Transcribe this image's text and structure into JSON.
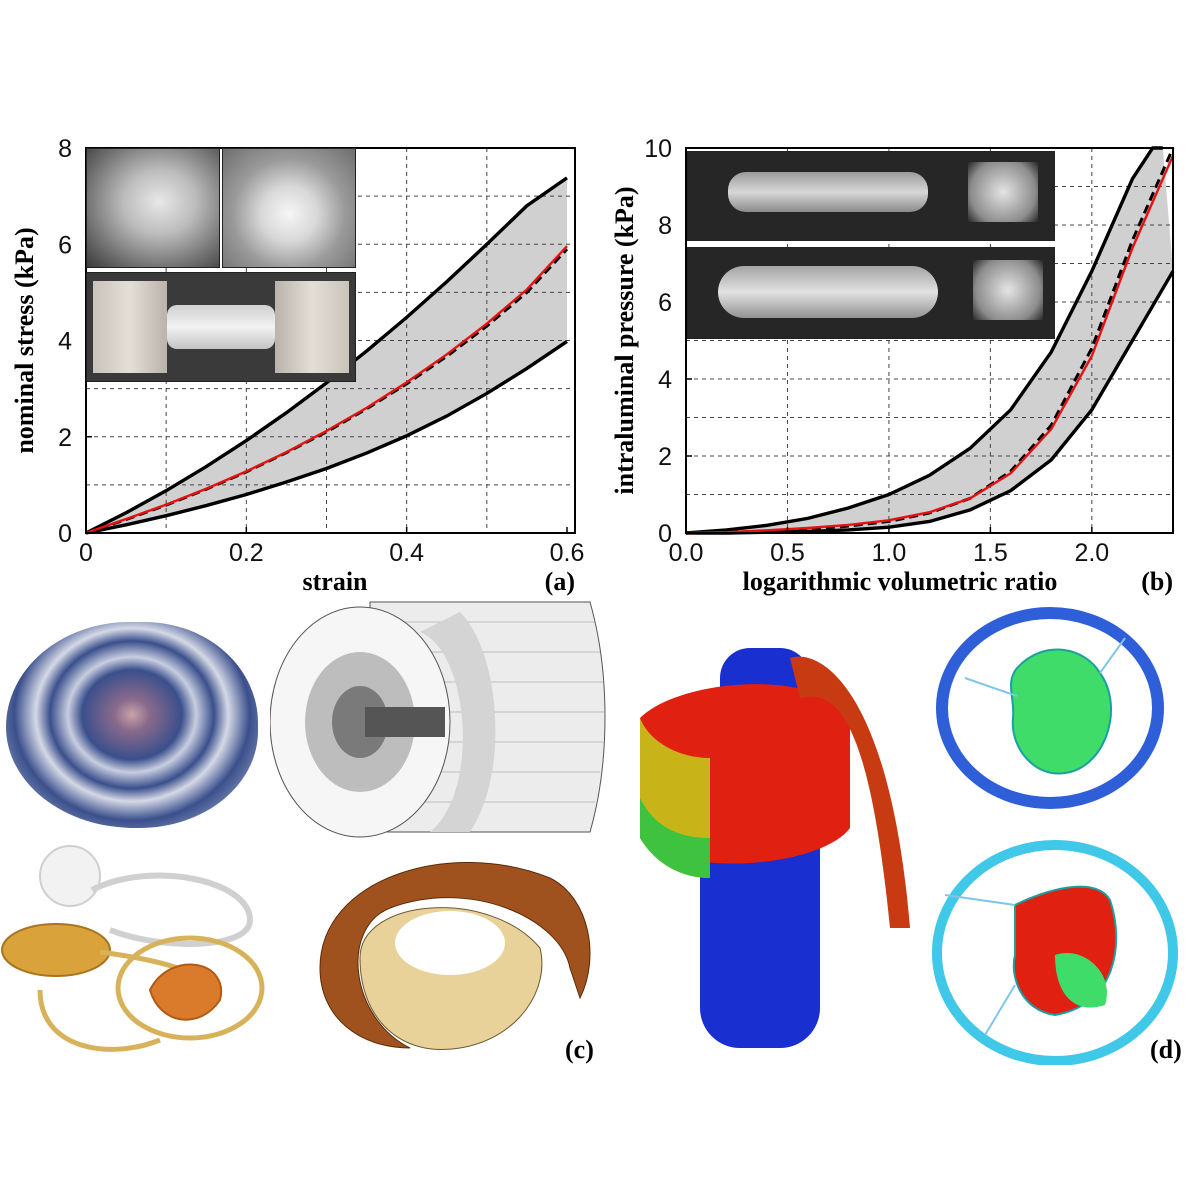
{
  "chart_data": [
    {
      "type": "area",
      "panel": "(a)",
      "xlabel": "strain",
      "ylabel": "nominal stress (kPa)",
      "xlim": [
        0,
        0.61
      ],
      "ylim": [
        0,
        8
      ],
      "x_ticks": [
        0,
        0.2,
        0.4,
        0.6
      ],
      "x_tick_labels": [
        "0",
        "0.2",
        "0.4",
        "0.6"
      ],
      "y_ticks": [
        0,
        2,
        4,
        6,
        8
      ],
      "y_tick_labels": [
        "0",
        "2",
        "4",
        "6",
        "8"
      ],
      "x_grid": [
        0.1,
        0.2,
        0.3,
        0.4,
        0.5
      ],
      "y_grid": [
        1,
        2,
        3,
        4,
        5,
        6,
        7
      ],
      "grid": true,
      "series": [
        {
          "role": "upper",
          "color": "#000000",
          "x": [
            0,
            0.05,
            0.1,
            0.15,
            0.2,
            0.25,
            0.3,
            0.35,
            0.4,
            0.45,
            0.5,
            0.55,
            0.6
          ],
          "y": [
            0,
            0.42,
            0.88,
            1.38,
            1.92,
            2.5,
            3.12,
            3.78,
            4.48,
            5.22,
            6.0,
            6.8,
            7.38
          ]
        },
        {
          "role": "lower",
          "color": "#000000",
          "x": [
            0,
            0.05,
            0.1,
            0.15,
            0.2,
            0.25,
            0.3,
            0.35,
            0.4,
            0.45,
            0.5,
            0.55,
            0.6
          ],
          "y": [
            0,
            0.17,
            0.36,
            0.57,
            0.8,
            1.06,
            1.34,
            1.66,
            2.02,
            2.43,
            2.9,
            3.42,
            3.98
          ]
        },
        {
          "role": "mean",
          "color": "#000000",
          "x": [
            0,
            0.05,
            0.1,
            0.15,
            0.2,
            0.25,
            0.3,
            0.35,
            0.4,
            0.45,
            0.5,
            0.55,
            0.6
          ],
          "y": [
            0,
            0.28,
            0.58,
            0.91,
            1.27,
            1.67,
            2.1,
            2.58,
            3.1,
            3.67,
            4.3,
            5.0,
            5.9
          ]
        },
        {
          "role": "model",
          "color": "#e81010",
          "x": [
            0,
            0.05,
            0.1,
            0.15,
            0.2,
            0.25,
            0.3,
            0.35,
            0.4,
            0.45,
            0.5,
            0.55,
            0.6
          ],
          "y": [
            0,
            0.29,
            0.59,
            0.92,
            1.28,
            1.68,
            2.12,
            2.6,
            3.13,
            3.71,
            4.35,
            5.06,
            5.96
          ]
        }
      ]
    },
    {
      "type": "area",
      "panel": "(b)",
      "xlabel": "logarithmic volumetric ratio",
      "ylabel": "intraluminal pressure (kPa)",
      "xlim": [
        0,
        2.4
      ],
      "ylim": [
        0,
        10
      ],
      "x_ticks": [
        0,
        0.5,
        1.0,
        1.5,
        2.0
      ],
      "x_tick_labels": [
        "0.0",
        "0.5",
        "1.0",
        "1.5",
        "2.0"
      ],
      "y_ticks": [
        0,
        2,
        4,
        6,
        8,
        10
      ],
      "y_tick_labels": [
        "0",
        "2",
        "4",
        "6",
        "8",
        "10"
      ],
      "x_grid": [
        0.5,
        1.0,
        1.5,
        2.0
      ],
      "y_grid": [
        1,
        2,
        3,
        4,
        5,
        6,
        7,
        8,
        9
      ],
      "grid": true,
      "series": [
        {
          "role": "upper",
          "color": "#000000",
          "x": [
            0,
            0.2,
            0.4,
            0.6,
            0.8,
            1.0,
            1.2,
            1.4,
            1.6,
            1.8,
            2.0,
            2.2,
            2.3,
            2.35
          ],
          "y": [
            0,
            0.08,
            0.2,
            0.38,
            0.65,
            1.0,
            1.5,
            2.2,
            3.2,
            4.7,
            6.8,
            9.2,
            10.0,
            10.0
          ]
        },
        {
          "role": "lower",
          "color": "#000000",
          "x": [
            0,
            0.2,
            0.4,
            0.6,
            0.8,
            1.0,
            1.2,
            1.4,
            1.6,
            1.8,
            2.0,
            2.2,
            2.4
          ],
          "y": [
            0,
            0.0,
            0.02,
            0.04,
            0.08,
            0.15,
            0.3,
            0.6,
            1.1,
            1.9,
            3.2,
            5.0,
            6.8
          ]
        },
        {
          "role": "mean",
          "color": "#000000",
          "x": [
            0,
            0.2,
            0.4,
            0.6,
            0.8,
            1.0,
            1.2,
            1.4,
            1.6,
            1.8,
            2.0,
            2.2,
            2.4
          ],
          "y": [
            0,
            0.01,
            0.05,
            0.1,
            0.18,
            0.3,
            0.52,
            0.9,
            1.6,
            2.8,
            4.8,
            7.6,
            10.0
          ]
        },
        {
          "role": "model",
          "color": "#e81010",
          "x": [
            0,
            0.2,
            0.4,
            0.6,
            0.8,
            1.0,
            1.2,
            1.4,
            1.6,
            1.8,
            2.0,
            2.2,
            2.4
          ],
          "y": [
            0,
            0.02,
            0.07,
            0.13,
            0.21,
            0.33,
            0.54,
            0.9,
            1.55,
            2.7,
            4.6,
            7.4,
            9.8
          ]
        }
      ]
    }
  ],
  "panels": {
    "c_label": "(c)",
    "d_label": "(d)"
  },
  "colors": {
    "band": "#d0d0d0",
    "model_curve": "#e81010",
    "histology_blue": "#3a4f8c",
    "mesh_grey": "#8a8a8a",
    "cuff_brown": "#a0521e",
    "fe_red": "#e02010",
    "fe_blue": "#1a2fcf",
    "contour_green": "#3fdc6a"
  }
}
